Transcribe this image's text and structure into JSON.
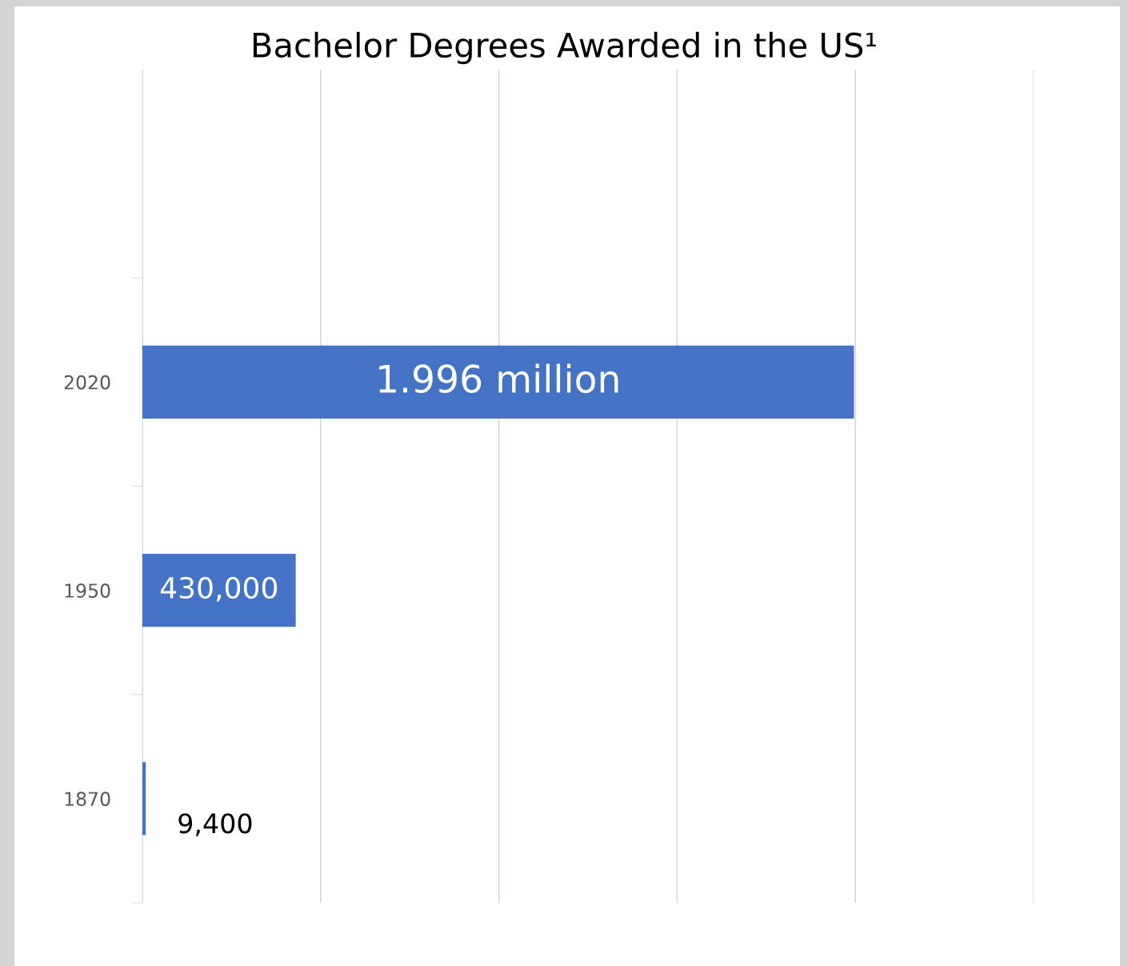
{
  "chart_data": {
    "type": "bar",
    "orientation": "horizontal",
    "title": "Bachelor Degrees Awarded in the US¹",
    "categories": [
      "2020",
      "1950",
      "1870"
    ],
    "values": [
      1996000,
      430000,
      9400
    ],
    "value_labels": [
      "1.996 million",
      "430,000",
      "9,400"
    ],
    "color": "#4472c4",
    "xlim": [
      0,
      2500000
    ],
    "xticks": [
      {
        "value": 0,
        "label": null
      },
      {
        "value": 500000,
        "label": null
      },
      {
        "value": 1000000,
        "label": null
      },
      {
        "value": 1500000,
        "label": null
      },
      {
        "value": 2000000,
        "label": null
      },
      {
        "value": 2500000,
        "label": null
      }
    ],
    "grid": "x",
    "tick_labels": "y",
    "legend": false
  }
}
